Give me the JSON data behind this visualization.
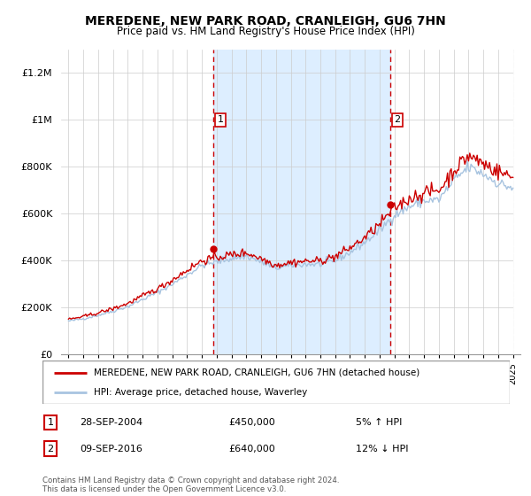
{
  "title": "MEREDENE, NEW PARK ROAD, CRANLEIGH, GU6 7HN",
  "subtitle": "Price paid vs. HM Land Registry's House Price Index (HPI)",
  "legend_line1": "MEREDENE, NEW PARK ROAD, CRANLEIGH, GU6 7HN (detached house)",
  "legend_line2": "HPI: Average price, detached house, Waverley",
  "transaction1_date": "28-SEP-2004",
  "transaction1_price": "£450,000",
  "transaction1_hpi": "5% ↑ HPI",
  "transaction2_date": "09-SEP-2016",
  "transaction2_price": "£640,000",
  "transaction2_hpi": "12% ↓ HPI",
  "footer": "Contains HM Land Registry data © Crown copyright and database right 2024.\nThis data is licensed under the Open Government Licence v3.0.",
  "hpi_color": "#a8c4e0",
  "price_color": "#cc0000",
  "marker_color": "#cc0000",
  "vline_color": "#cc0000",
  "shading_color": "#ddeeff",
  "hatch_color": "#cccccc",
  "background_color": "#ffffff",
  "ylim": [
    0,
    1300000
  ],
  "yticks": [
    0,
    200000,
    400000,
    600000,
    800000,
    1000000,
    1200000
  ],
  "transaction1_x": 2004.75,
  "transaction2_x": 2016.69,
  "xlim_left": 1994.5,
  "xlim_right": 2025.5
}
